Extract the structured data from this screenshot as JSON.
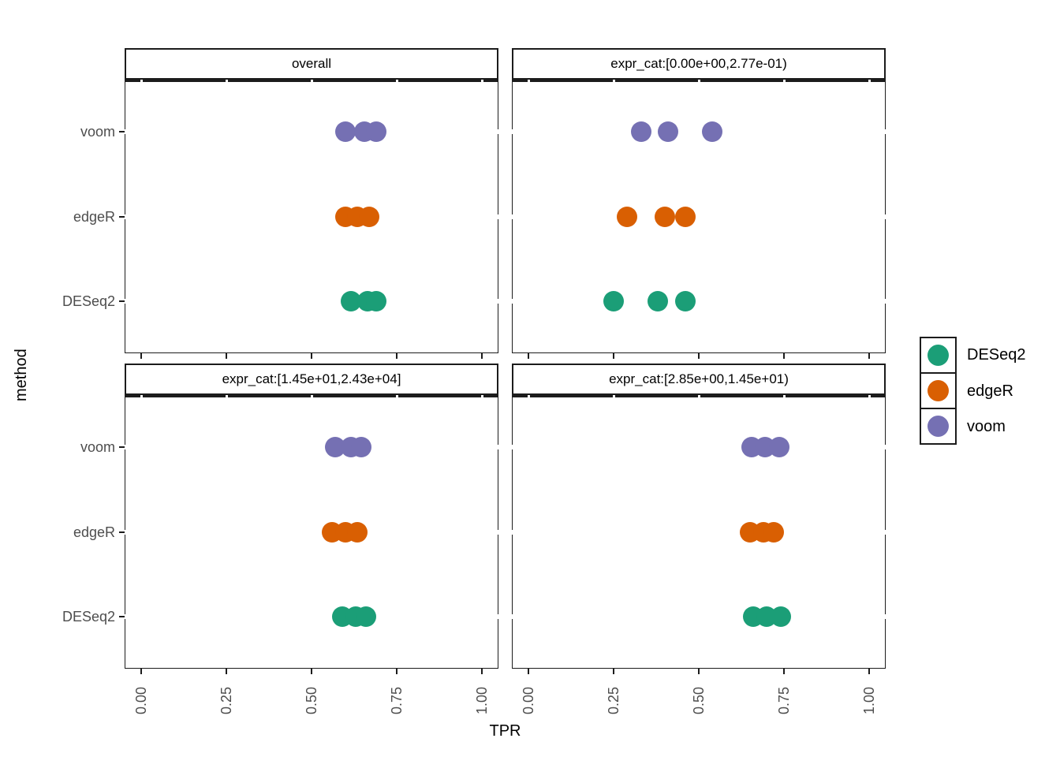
{
  "chart_data": {
    "type": "scatter",
    "title": "",
    "xlabel": "TPR",
    "ylabel": "method",
    "xlim": [
      0,
      1.05
    ],
    "grid": false,
    "legend_position": "right",
    "x_ticks": {
      "labels": [
        "0.00",
        "0.25",
        "0.50",
        "0.75",
        "1.00"
      ],
      "values": [
        0,
        0.25,
        0.5,
        0.75,
        1.0
      ]
    },
    "y_categories": [
      "voom",
      "edgeR",
      "DESeq2"
    ],
    "colors": {
      "DESeq2": "#1B9E77",
      "edgeR": "#D95F02",
      "voom": "#7570B3"
    },
    "legend": [
      {
        "label": "DESeq2",
        "color": "#1B9E77"
      },
      {
        "label": "edgeR",
        "color": "#D95F02"
      },
      {
        "label": "voom",
        "color": "#7570B3"
      }
    ],
    "facets": [
      {
        "title": "overall",
        "series": [
          {
            "method": "voom",
            "tpr": [
              0.6,
              0.655,
              0.69
            ]
          },
          {
            "method": "edgeR",
            "tpr": [
              0.6,
              0.635,
              0.67
            ]
          },
          {
            "method": "DESeq2",
            "tpr": [
              0.615,
              0.665,
              0.69
            ]
          }
        ]
      },
      {
        "title": "expr_cat:[0.00e+00,2.77e-01)",
        "series": [
          {
            "method": "voom",
            "tpr": [
              0.33,
              0.41,
              0.54
            ]
          },
          {
            "method": "edgeR",
            "tpr": [
              0.29,
              0.4,
              0.46
            ]
          },
          {
            "method": "DESeq2",
            "tpr": [
              0.25,
              0.38,
              0.46
            ]
          }
        ]
      },
      {
        "title": "expr_cat:[1.45e+01,2.43e+04]",
        "series": [
          {
            "method": "voom",
            "tpr": [
              0.57,
              0.615,
              0.645
            ]
          },
          {
            "method": "edgeR",
            "tpr": [
              0.56,
              0.6,
              0.635
            ]
          },
          {
            "method": "DESeq2",
            "tpr": [
              0.59,
              0.63,
              0.66
            ]
          }
        ]
      },
      {
        "title": "expr_cat:[2.85e+00,1.45e+01)",
        "series": [
          {
            "method": "voom",
            "tpr": [
              0.655,
              0.695,
              0.735
            ]
          },
          {
            "method": "edgeR",
            "tpr": [
              0.65,
              0.69,
              0.72
            ]
          },
          {
            "method": "DESeq2",
            "tpr": [
              0.66,
              0.7,
              0.74
            ]
          }
        ]
      }
    ]
  }
}
